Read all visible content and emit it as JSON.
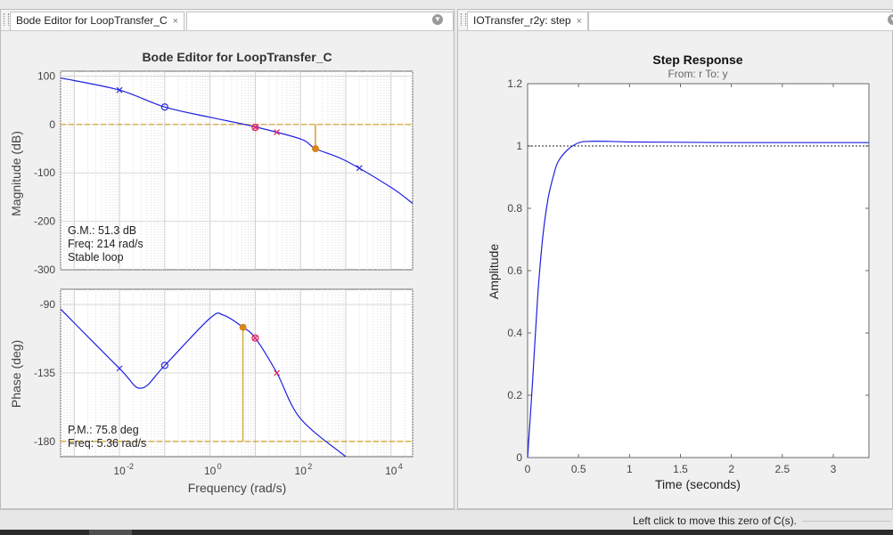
{
  "tabs": {
    "left": {
      "label": "Bode Editor for LoopTransfer_C",
      "close": "×"
    },
    "right": {
      "label": "IOTransfer_r2y: step",
      "close": "×"
    }
  },
  "bode": {
    "title": "Bode Editor for LoopTransfer_C",
    "magnitude_ylabel": "Magnitude (dB)",
    "phase_ylabel": "Phase (deg)",
    "xlabel": "Frequency (rad/s)",
    "mag_ticks": [
      "100",
      "0",
      "-100",
      "-200",
      "-300"
    ],
    "phase_ticks": [
      "-90",
      "-135",
      "-180"
    ],
    "freq_ticks": [
      "10",
      "10",
      "10",
      "10"
    ],
    "freq_exps": [
      "-2",
      "0",
      "2",
      "4"
    ],
    "gm_lines": [
      "G.M.: 51.3 dB",
      "Freq: 214 rad/s",
      "Stable loop"
    ],
    "pm_lines": [
      "P.M.: 75.8 deg",
      "Freq: 5.36 rad/s"
    ]
  },
  "step": {
    "title": "Step Response",
    "subtitle": "From: r  To: y",
    "ylabel": "Amplitude",
    "xlabel": "Time (seconds)",
    "y_ticks": [
      "1.2",
      "1",
      "0.8",
      "0.6",
      "0.4",
      "0.2",
      "0"
    ],
    "x_ticks": [
      "0",
      "0.5",
      "1",
      "1.5",
      "2",
      "2.5",
      "3"
    ]
  },
  "status": {
    "message": "Left click to move this zero of C(s)."
  },
  "colors": {
    "response": "#1f1fe0",
    "margin": "#d4a017",
    "marker": "#d8861a",
    "pole": "#e0205a",
    "zero": "#2b2be0"
  },
  "chart_data": [
    {
      "type": "line",
      "title": "Bode Editor for LoopTransfer_C",
      "xlabel": "Frequency (rad/s)",
      "ylabel": "Magnitude (dB)",
      "xscale": "log",
      "xlim": [
        0.0005,
        30000
      ],
      "ylim": [
        -300,
        110
      ],
      "grid": true,
      "series": [
        {
          "x": [
            0.0005,
            0.01,
            0.1,
            1,
            10,
            100,
            214,
            1000,
            10000,
            30000
          ],
          "values": [
            96,
            71,
            36,
            15,
            -5,
            -30,
            -50,
            -75,
            -130,
            -163
          ]
        }
      ],
      "annotations": [
        "G.M.: 51.3 dB",
        "Freq: 214 rad/s",
        "Stable loop"
      ]
    },
    {
      "type": "line",
      "xlabel": "Frequency (rad/s)",
      "ylabel": "Phase (deg)",
      "xscale": "log",
      "xlim": [
        0.0005,
        30000
      ],
      "ylim": [
        -190,
        -80
      ],
      "grid": true,
      "series": [
        {
          "x": [
            0.0005,
            0.01,
            0.03,
            0.1,
            1,
            2,
            5.36,
            10,
            30,
            100,
            1000
          ],
          "values": [
            -93,
            -132,
            -145,
            -130,
            -99,
            -97,
            -105,
            -112,
            -135,
            -165,
            -190
          ]
        }
      ],
      "annotations": [
        "P.M.: 75.8 deg",
        "Freq: 5.36 rad/s"
      ]
    },
    {
      "type": "line",
      "title": "Step Response",
      "subtitle": "From: r  To: y",
      "xlabel": "Time (seconds)",
      "ylabel": "Amplitude",
      "xlim": [
        0,
        3.35
      ],
      "ylim": [
        0,
        1.2
      ],
      "series": [
        {
          "x": [
            0,
            0.05,
            0.1,
            0.15,
            0.2,
            0.25,
            0.3,
            0.4,
            0.5,
            0.6,
            0.8,
            1.0,
            1.5,
            2,
            3,
            3.35
          ],
          "values": [
            0,
            0.25,
            0.52,
            0.71,
            0.83,
            0.9,
            0.95,
            0.99,
            1.01,
            1.015,
            1.015,
            1.013,
            1.012,
            1.011,
            1.011,
            1.011
          ]
        }
      ],
      "reference": 1
    }
  ]
}
